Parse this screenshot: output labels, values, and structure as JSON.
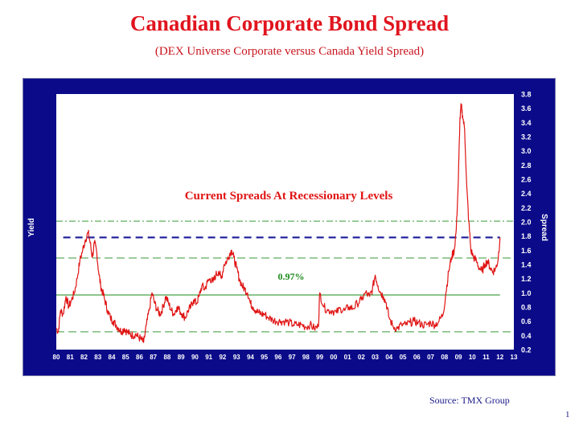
{
  "title": "Canadian Corporate Bond Spread",
  "subtitle": "(DEX Universe Corporate versus Canada Yield Spread)",
  "source": "Source: TMX Group",
  "page_number": "1",
  "colors": {
    "frame": "#0b0b8a",
    "series": "#e01414",
    "current_line": "#1a1a9a",
    "average_line": "#1a8a1a",
    "band_lines": "#3a9a3a",
    "annotation": "#e01414",
    "average_label": "#1a8a1a"
  },
  "chart_data": {
    "type": "line",
    "xlabel": "",
    "ylabel_left": "Yield",
    "ylabel_right": "Spread",
    "x_tick_labels": [
      "80",
      "81",
      "82",
      "83",
      "84",
      "85",
      "86",
      "87",
      "88",
      "89",
      "90",
      "91",
      "92",
      "93",
      "94",
      "95",
      "96",
      "97",
      "98",
      "99",
      "00",
      "01",
      "02",
      "03",
      "04",
      "05",
      "06",
      "07",
      "08",
      "09",
      "10",
      "11",
      "12",
      "13"
    ],
    "xlim": [
      1980,
      2013
    ],
    "ylim": [
      0.2,
      3.8
    ],
    "y_ticks": [
      0.2,
      0.4,
      0.6,
      0.8,
      1.0,
      1.2,
      1.4,
      1.6,
      1.8,
      2.0,
      2.2,
      2.4,
      2.6,
      2.8,
      3.0,
      3.2,
      3.4,
      3.6,
      3.8
    ],
    "annotation": "Current Spreads At Recessionary Levels",
    "average_label": "0.97%",
    "reference_lines": [
      {
        "kind": "average",
        "value": 0.97,
        "style": "solid"
      },
      {
        "kind": "current",
        "value": 1.78,
        "style": "dashed"
      },
      {
        "kind": "band",
        "value": 2.01,
        "style": "dash-dot"
      },
      {
        "kind": "band",
        "value": 1.49,
        "style": "dashed"
      },
      {
        "kind": "band",
        "value": 0.45,
        "style": "dashed"
      }
    ],
    "series": [
      {
        "x": [
          1980.0,
          1980.15,
          1980.3,
          1980.5,
          1980.7,
          1980.9,
          1981.1,
          1981.3,
          1981.5,
          1981.7,
          1981.9,
          1982.1,
          1982.3,
          1982.45,
          1982.6,
          1982.75,
          1982.9,
          1983.05,
          1983.2,
          1983.35,
          1983.5,
          1983.7,
          1983.9,
          1984.1,
          1984.3,
          1984.5,
          1984.7,
          1984.9,
          1985.1,
          1985.3,
          1985.5,
          1985.7,
          1985.9,
          1986.1,
          1986.3,
          1986.5,
          1986.7,
          1986.9,
          1987.1,
          1987.3,
          1987.5,
          1987.7,
          1987.9,
          1988.1,
          1988.3,
          1988.5,
          1988.7,
          1988.9,
          1989.1,
          1989.3,
          1989.5,
          1989.7,
          1989.9,
          1990.1,
          1990.3,
          1990.5,
          1990.7,
          1990.9,
          1991.1,
          1991.3,
          1991.5,
          1991.7,
          1991.9,
          1992.1,
          1992.3,
          1992.5,
          1992.65,
          1992.8,
          1993.0,
          1993.2,
          1993.4,
          1993.6,
          1993.8,
          1994.0,
          1994.2,
          1994.4,
          1994.6,
          1994.8,
          1995.0,
          1995.3,
          1995.6,
          1995.9,
          1996.2,
          1996.5,
          1996.8,
          1997.1,
          1997.4,
          1997.7,
          1998.0,
          1998.3,
          1998.6,
          1998.9,
          1999.0,
          1999.3,
          1999.6,
          1999.9,
          2000.2,
          2000.5,
          2000.8,
          2001.1,
          2001.4,
          2001.7,
          2002.0,
          2002.3,
          2002.6,
          2002.8,
          2003.0,
          2003.2,
          2003.4,
          2003.6,
          2003.8,
          2004.0,
          2004.3,
          2004.6,
          2004.9,
          2005.2,
          2005.5,
          2005.8,
          2006.1,
          2006.4,
          2006.7,
          2007.0,
          2007.3,
          2007.6,
          2007.9,
          2008.1,
          2008.3,
          2008.5,
          2008.7,
          2008.85,
          2009.0,
          2009.1,
          2009.2,
          2009.3,
          2009.45,
          2009.6,
          2009.75,
          2009.9,
          2010.1,
          2010.3,
          2010.5,
          2010.7,
          2010.9,
          2011.1,
          2011.3,
          2011.5,
          2011.7,
          2011.85,
          2012.0
        ],
        "y": [
          0.5,
          0.45,
          0.75,
          0.7,
          0.95,
          0.8,
          0.9,
          1.0,
          1.2,
          1.45,
          1.6,
          1.75,
          1.85,
          1.7,
          1.5,
          1.7,
          1.6,
          1.3,
          1.1,
          1.0,
          0.9,
          0.75,
          0.65,
          0.6,
          0.55,
          0.5,
          0.45,
          0.5,
          0.45,
          0.42,
          0.4,
          0.42,
          0.38,
          0.35,
          0.3,
          0.55,
          0.75,
          1.0,
          0.85,
          0.75,
          0.7,
          0.8,
          0.95,
          0.85,
          0.75,
          0.7,
          0.8,
          0.75,
          0.7,
          0.65,
          0.75,
          0.8,
          0.9,
          0.85,
          0.95,
          1.1,
          1.05,
          1.15,
          1.2,
          1.15,
          1.25,
          1.3,
          1.2,
          1.4,
          1.45,
          1.55,
          1.6,
          1.5,
          1.35,
          1.2,
          1.1,
          1.05,
          1.0,
          0.85,
          0.8,
          0.75,
          0.72,
          0.7,
          0.7,
          0.65,
          0.62,
          0.6,
          0.6,
          0.6,
          0.58,
          0.55,
          0.55,
          0.55,
          0.52,
          0.55,
          0.5,
          0.52,
          1.0,
          0.8,
          0.75,
          0.75,
          0.72,
          0.78,
          0.75,
          0.8,
          0.78,
          0.85,
          0.9,
          1.0,
          0.95,
          1.05,
          1.25,
          1.1,
          1.0,
          0.95,
          0.85,
          0.65,
          0.52,
          0.5,
          0.55,
          0.55,
          0.58,
          0.6,
          0.58,
          0.55,
          0.55,
          0.58,
          0.55,
          0.6,
          0.7,
          1.0,
          1.3,
          1.5,
          1.6,
          1.9,
          2.6,
          3.4,
          3.65,
          3.5,
          3.3,
          2.5,
          2.0,
          1.6,
          1.5,
          1.45,
          1.35,
          1.3,
          1.4,
          1.45,
          1.35,
          1.3,
          1.35,
          1.45,
          1.78
        ]
      }
    ]
  }
}
